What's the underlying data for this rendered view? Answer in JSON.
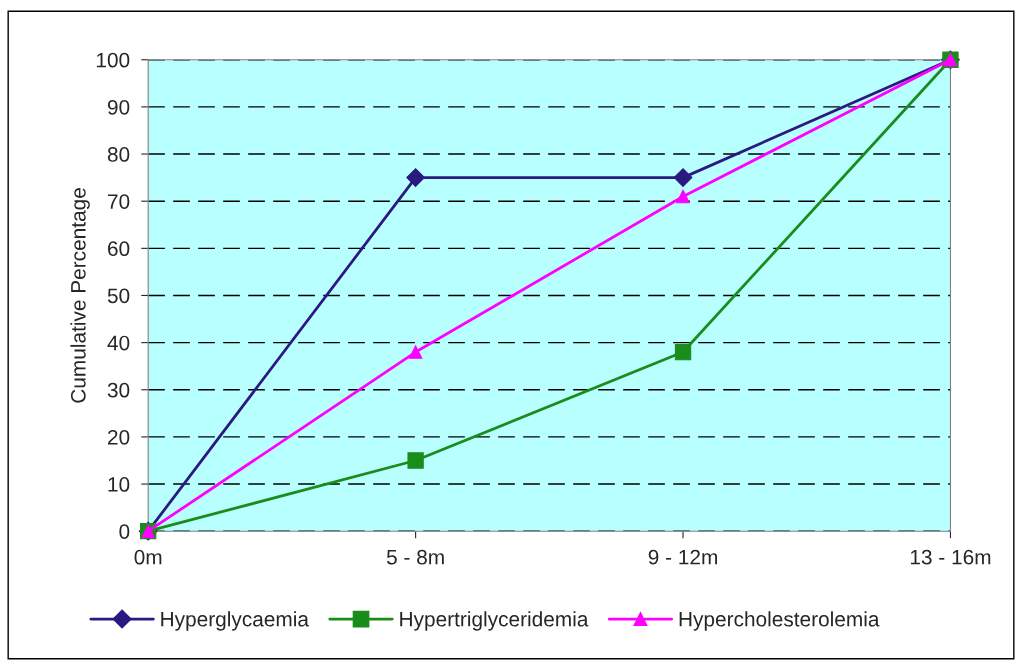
{
  "chart_data": {
    "type": "line",
    "ylabel": "Cumulative Percentage",
    "categories": [
      "0m",
      "5 - 8m",
      "9 - 12m",
      "13 - 16m"
    ],
    "series": [
      {
        "name": "Hyperglycaemia",
        "color": "#2a1a80",
        "marker": "diamond",
        "values": [
          0,
          75,
          75,
          100
        ]
      },
      {
        "name": "Hypertriglyceridemia",
        "color": "#1a8c1a",
        "marker": "square",
        "values": [
          0,
          15,
          38,
          100
        ]
      },
      {
        "name": "Hypercholesterolemia",
        "color": "#ff00ff",
        "marker": "triangle",
        "values": [
          0,
          38,
          71,
          100
        ]
      }
    ],
    "ylim": [
      0,
      100
    ],
    "yticks": [
      0,
      10,
      20,
      30,
      40,
      50,
      60,
      70,
      80,
      90,
      100
    ],
    "grid": "y",
    "legend": "bottom",
    "line_style": "solid"
  }
}
